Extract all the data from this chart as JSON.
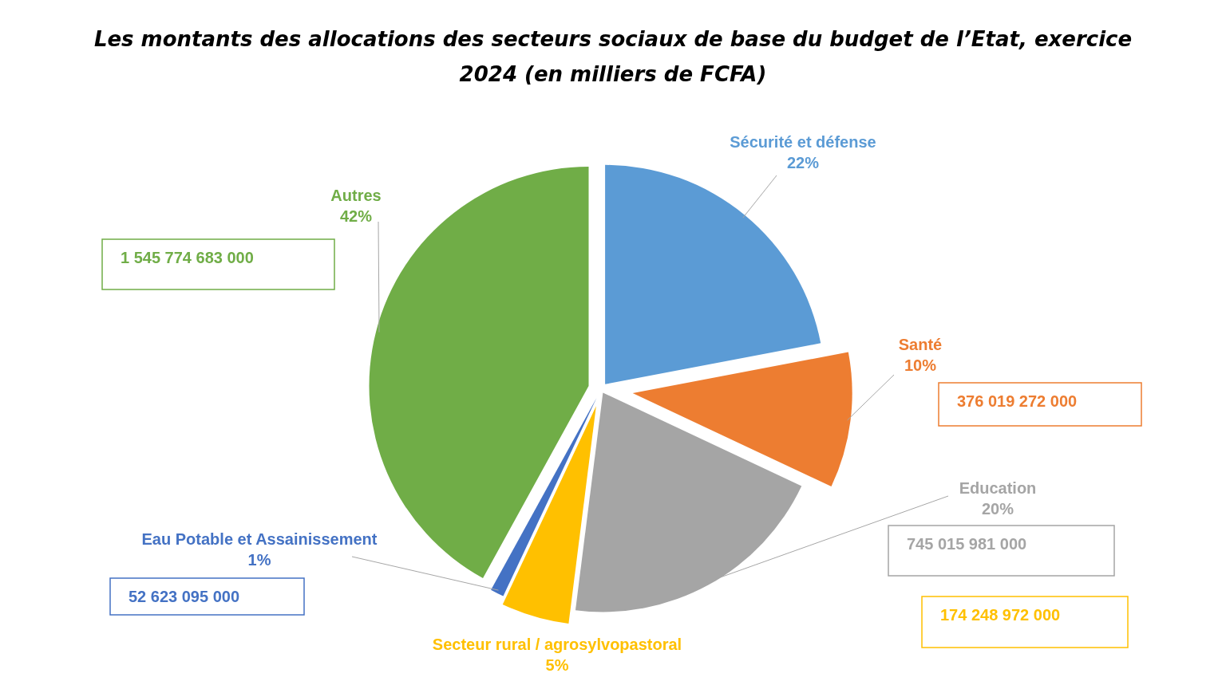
{
  "chart_data": {
    "type": "pie",
    "title": "Les montants des allocations des secteurs sociaux de base du budget de l’Etat, exercice 2024 (en milliers de FCFA)",
    "categories": [
      "Sécurité et défense",
      "Santé",
      "Education",
      "Secteur rural / agrosylvopastoral",
      "Eau Potable et Assainissement",
      "Autres"
    ],
    "values": [
      22,
      10,
      20,
      5,
      1,
      42
    ],
    "colors": [
      "#5b9bd5",
      "#ed7d31",
      "#a5a5a5",
      "#ffc000",
      "#4472c4",
      "#70ad47"
    ],
    "value_labels": [
      "22%",
      "10%",
      "20%",
      "5%",
      "1%",
      "42%"
    ],
    "annotations": [
      "376 019 272 000",
      "745 015 981 000",
      "174 248 972 000",
      "52 623 095 000",
      "1 545 774 683 000"
    ],
    "data_labels": true,
    "legend": false
  }
}
